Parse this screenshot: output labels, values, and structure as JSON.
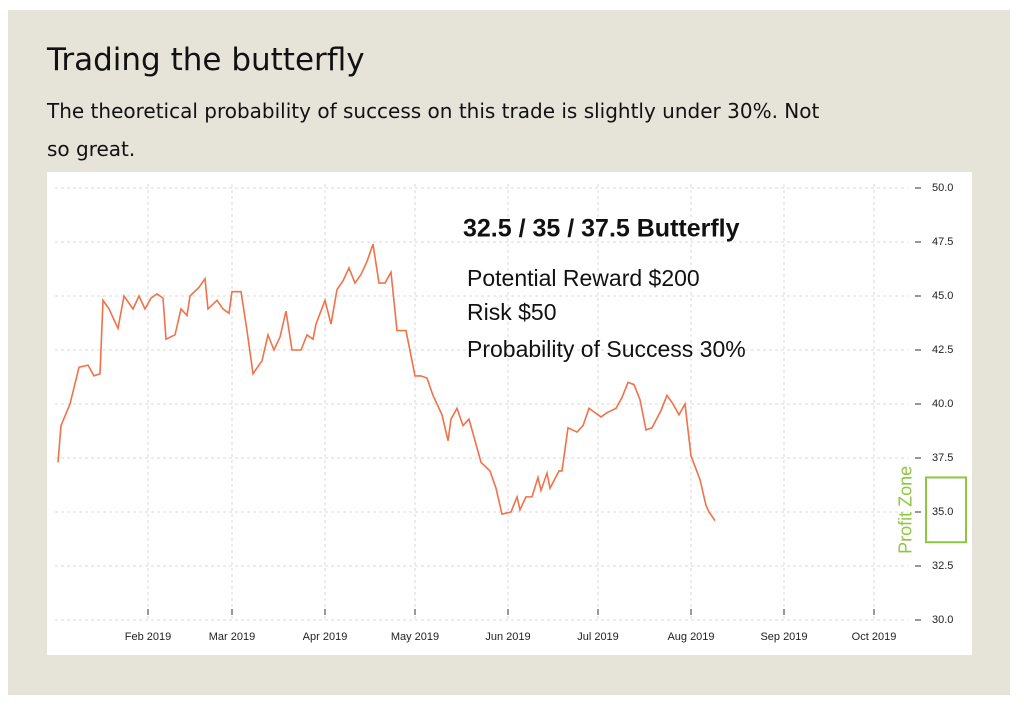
{
  "header": {
    "title": "Trading the butterfly",
    "subtitle": "The theoretical probability of success on this trade is slightly under 30%. Not so great."
  },
  "chart_data": {
    "type": "line",
    "annotations": [
      "32.5 / 35 / 37.5 Butterfly",
      "Potential Reward $200",
      "Risk $50",
      "Probability of Success 30%"
    ],
    "profit_zone": {
      "label": "Profit Zone",
      "range": [
        33.6,
        36.6
      ],
      "color": "#8dc63f"
    },
    "x": [
      "2019-01-02",
      "2019-01-03",
      "2019-01-06",
      "2019-01-09",
      "2019-01-12",
      "2019-01-14",
      "2019-01-16",
      "2019-01-17",
      "2019-01-19",
      "2019-01-22",
      "2019-01-24",
      "2019-01-27",
      "2019-01-29",
      "2019-01-31",
      "2019-02-02",
      "2019-02-04",
      "2019-02-06",
      "2019-02-07",
      "2019-02-10",
      "2019-02-12",
      "2019-02-14",
      "2019-02-15",
      "2019-02-18",
      "2019-02-20",
      "2019-02-21",
      "2019-02-24",
      "2019-02-26",
      "2019-02-28",
      "2019-03-01",
      "2019-03-04",
      "2019-03-06",
      "2019-03-08",
      "2019-03-11",
      "2019-03-13",
      "2019-03-15",
      "2019-03-17",
      "2019-03-19",
      "2019-03-21",
      "2019-03-24",
      "2019-03-26",
      "2019-03-28",
      "2019-03-29",
      "2019-04-01",
      "2019-04-03",
      "2019-04-05",
      "2019-04-07",
      "2019-04-09",
      "2019-04-11",
      "2019-04-13",
      "2019-04-15",
      "2019-04-17",
      "2019-04-19",
      "2019-04-21",
      "2019-04-23",
      "2019-04-25",
      "2019-04-28",
      "2019-05-01",
      "2019-05-03",
      "2019-05-05",
      "2019-05-07",
      "2019-05-10",
      "2019-05-12",
      "2019-05-13",
      "2019-05-15",
      "2019-05-17",
      "2019-05-19",
      "2019-05-21",
      "2019-05-23",
      "2019-05-26",
      "2019-05-28",
      "2019-05-30",
      "2019-06-02",
      "2019-06-04",
      "2019-06-05",
      "2019-06-07",
      "2019-06-09",
      "2019-06-11",
      "2019-06-12",
      "2019-06-14",
      "2019-06-15",
      "2019-06-18",
      "2019-06-19",
      "2019-06-21",
      "2019-06-24",
      "2019-06-26",
      "2019-06-28",
      "2019-06-30",
      "2019-07-02",
      "2019-07-04",
      "2019-07-07",
      "2019-07-09",
      "2019-07-11",
      "2019-07-13",
      "2019-07-15",
      "2019-07-17",
      "2019-07-19",
      "2019-07-22",
      "2019-07-24",
      "2019-07-26",
      "2019-07-28",
      "2019-07-30",
      "2019-08-01",
      "2019-08-04",
      "2019-08-06",
      "2019-08-07",
      "2019-08-09"
    ],
    "series": [
      {
        "color": "#f0714a",
        "values": [
          37.3,
          39.0,
          40.0,
          41.7,
          41.8,
          41.3,
          41.4,
          44.8,
          44.4,
          43.5,
          45.0,
          44.4,
          45.0,
          44.4,
          44.9,
          45.1,
          44.9,
          43.0,
          43.2,
          44.4,
          44.1,
          45.0,
          45.4,
          45.8,
          44.4,
          44.8,
          44.4,
          44.2,
          45.2,
          45.2,
          43.4,
          41.4,
          42.0,
          43.2,
          42.5,
          43.1,
          44.3,
          42.5,
          42.5,
          43.2,
          43.0,
          43.7,
          44.8,
          43.7,
          45.3,
          45.7,
          46.3,
          45.6,
          46.0,
          46.6,
          47.4,
          45.6,
          45.6,
          46.1,
          43.4,
          43.4,
          41.3,
          41.3,
          41.2,
          40.4,
          39.5,
          38.3,
          39.3,
          39.8,
          39.0,
          39.3,
          38.3,
          37.3,
          36.9,
          36.1,
          34.9,
          35.0,
          35.7,
          35.1,
          35.7,
          35.7,
          36.6,
          36.0,
          36.8,
          36.1,
          36.9,
          36.9,
          38.9,
          38.7,
          39.0,
          39.8,
          39.6,
          39.4,
          39.6,
          39.8,
          40.3,
          41.0,
          40.9,
          40.2,
          38.8,
          38.9,
          39.7,
          40.4,
          40.0,
          39.5,
          40.0,
          37.6,
          36.5,
          35.3,
          35.0,
          34.6
        ]
      }
    ],
    "xlim": [
      "2019-01-01",
      "2019-10-11"
    ],
    "xticks": [
      {
        "value": "2019-02-01",
        "label": "Feb 2019"
      },
      {
        "value": "2019-03-01",
        "label": "Mar 2019"
      },
      {
        "value": "2019-04-01",
        "label": "Apr 2019"
      },
      {
        "value": "2019-05-01",
        "label": "May 2019"
      },
      {
        "value": "2019-06-01",
        "label": "Jun 2019"
      },
      {
        "value": "2019-07-01",
        "label": "Jul 2019"
      },
      {
        "value": "2019-08-01",
        "label": "Aug 2019"
      },
      {
        "value": "2019-09-01",
        "label": "Sep 2019"
      },
      {
        "value": "2019-10-01",
        "label": "Oct 2019"
      }
    ],
    "ylim": [
      30,
      50
    ],
    "yticks": [
      {
        "value": 30,
        "label": "30.0"
      },
      32.5,
      {
        "value": 35,
        "label": "35.0"
      },
      37.5,
      {
        "value": 40,
        "label": "40.0"
      },
      42.5,
      {
        "value": 45,
        "label": "45.0"
      },
      47.5,
      {
        "value": 50,
        "label": "50.0"
      }
    ],
    "grid": true
  }
}
